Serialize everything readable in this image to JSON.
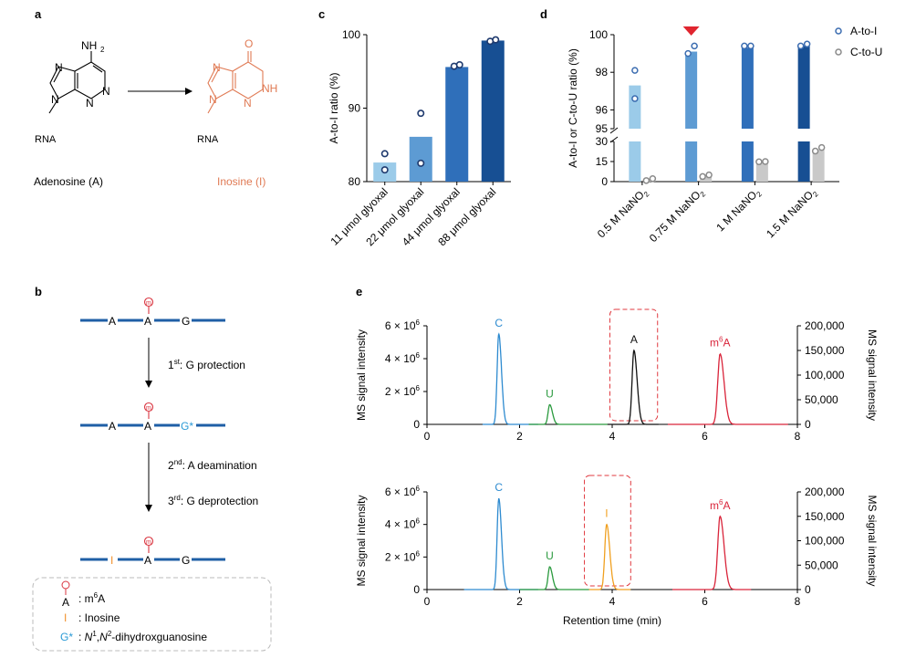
{
  "panel_labels": {
    "a": "a",
    "b": "b",
    "c": "c",
    "d": "d",
    "e": "e"
  },
  "panel_a": {
    "nh2": "NH",
    "nh2_sub": "2",
    "n_left": "N",
    "n_right": "N",
    "n_top": "N",
    "n_bottom": "N",
    "n9": "N",
    "rna_left": "RNA",
    "o": "O",
    "nh": "NH",
    "i_n_left": "N",
    "i_n_top": "N",
    "i_n_bottom": "N",
    "i_n9": "N",
    "rna_right": "RNA",
    "adenosine_label": "Adenosine (A)",
    "inosine_label": "Inosine (I)",
    "colors": {
      "inosine": "#e07a54"
    }
  },
  "panel_b": {
    "seq1": {
      "a1": "A",
      "a2": "A",
      "g": "G",
      "m": "m"
    },
    "step1_sup": "st",
    "step1_num": "1",
    "step1_text": ": G protection",
    "seq2": {
      "a1": "A",
      "a2": "A",
      "gstar": "G*",
      "m": "m"
    },
    "step2_num": "2",
    "step2_sup": "nd",
    "step2_text": ": A deamination",
    "step3_num": "3",
    "step3_sup": "rd",
    "step3_text": ": G deprotection",
    "seq3": {
      "i": "I",
      "a": "A",
      "g": "G",
      "m": "m"
    },
    "legend": {
      "m6a_letter": "A",
      "m6a_text": ": m",
      "m6a_sup": "6",
      "m6a_end": "A",
      "inosine_letter": "I",
      "inosine_text": ": Inosine",
      "g_letter": "G*",
      "g_text_n1": "N",
      "g_sup1": "1",
      "g_mid": ",",
      "g_text_n2": "N",
      "g_sup2": "2",
      "g_end": "-dihydroxguanosine",
      "g_prefix": ": "
    },
    "colors": {
      "strand": "#1f5fa6",
      "m6a": "#d9343f",
      "inosine": "#f0922c",
      "gstar": "#2a9ad6"
    }
  },
  "chart_data": [
    {
      "panel": "c",
      "type": "bar",
      "categories": [
        "11 μmol glyoxal",
        "22 μmol glyoxal",
        "44 μmol glyoxal",
        "88 μmol glyoxal"
      ],
      "values": [
        82.6,
        86.1,
        95.6,
        99.2
      ],
      "points": [
        [
          83.8,
          81.6
        ],
        [
          89.3,
          82.5
        ],
        [
          95.7,
          95.9
        ],
        [
          99.1,
          99.3
        ]
      ],
      "ylabel": "A-to-I ratio (%)",
      "ylim": [
        80,
        100
      ],
      "yticks": [
        80,
        90,
        100
      ],
      "bar_colors": [
        "#9bcbe9",
        "#5d9bd3",
        "#2f6fba",
        "#174f93"
      ],
      "point_color": "#1f3a6e"
    },
    {
      "panel": "d",
      "type": "bar",
      "categories": [
        "0.5 M NaNO",
        "0.75 M NaNO",
        "1 M NaNO",
        "1.5 M NaNO"
      ],
      "category_subscript": "2",
      "ylabel": "A-to-I or C-to-U ratio (%)",
      "broken_axis": {
        "upper": [
          95,
          100
        ],
        "lower": [
          0,
          30
        ]
      },
      "yticks_upper": [
        95,
        96,
        98,
        100
      ],
      "yticks_lower": [
        0,
        15,
        30
      ],
      "series": [
        {
          "name": "A-to-I",
          "values": [
            97.3,
            99.1,
            99.3,
            99.4
          ],
          "points": [
            [
              98.1,
              96.6
            ],
            [
              99.0,
              99.4
            ],
            [
              99.4,
              99.4
            ],
            [
              99.4,
              99.5
            ]
          ]
        },
        {
          "name": "C-to-U",
          "values": [
            1.5,
            4.3,
            14.6,
            24.0
          ],
          "points": [
            [
              0.8,
              2.2
            ],
            [
              3.8,
              5.0
            ],
            [
              14.8,
              15.0
            ],
            [
              22.8,
              25.5
            ]
          ]
        }
      ],
      "bar_colors_ai": [
        "#9bcbe9",
        "#5d9bd3",
        "#2f6fba",
        "#174f93"
      ],
      "bar_color_cu": "#c9c9c9",
      "point_colors": {
        "A-to-I": "#3b6cb0",
        "C-to-U": "#8a8a8a"
      },
      "highlight_marker_index": 1,
      "highlight_color": "#e0252f"
    },
    {
      "panel": "e-top",
      "type": "line",
      "xlabel": "",
      "ylabel_left": "MS signal intensity",
      "ylabel_right": "MS signal intensity",
      "xlim": [
        0,
        8
      ],
      "xticks": [
        0,
        2,
        4,
        6,
        8
      ],
      "ylim_left": [
        0,
        6000000
      ],
      "yticks_left": [
        {
          "v": 0,
          "t": "0"
        },
        {
          "v": 2000000,
          "t": "2 × 10",
          "e": "6"
        },
        {
          "v": 4000000,
          "t": "4 × 10",
          "e": "6"
        },
        {
          "v": 6000000,
          "t": "6 × 10",
          "e": "6"
        }
      ],
      "ylim_right": [
        0,
        200000
      ],
      "yticks_right": [
        {
          "v": 0,
          "t": "0"
        },
        {
          "v": 50000,
          "t": "50,000"
        },
        {
          "v": 100000,
          "t": "100,000"
        },
        {
          "v": 150000,
          "t": "150,000"
        },
        {
          "v": 200000,
          "t": "200,000"
        }
      ],
      "series": [
        {
          "name": "C",
          "label": "C",
          "color": "#2e8bd0",
          "center": 1.55,
          "height": 5500000,
          "width": 0.035,
          "range": [
            1.2,
            2.4
          ]
        },
        {
          "name": "U",
          "label": "U",
          "color": "#2a9a3e",
          "center": 2.65,
          "height": 1200000,
          "width": 0.035,
          "range": [
            2.2,
            3.9
          ]
        },
        {
          "name": "A",
          "label": "A",
          "color": "#111111",
          "center": 4.47,
          "height": 4500000,
          "width": 0.04,
          "range": [
            3.9,
            5.0
          ]
        },
        {
          "name": "m6A",
          "label": "m",
          "label_sup": "6",
          "label_end": "A",
          "color": "#d9243a",
          "center": 6.33,
          "height": 4300000,
          "width": 0.05,
          "range": [
            5.2,
            7.8
          ]
        }
      ],
      "highlight_box": {
        "x": [
          3.95,
          4.98
        ],
        "color": "#e0393f"
      }
    },
    {
      "panel": "e-bottom",
      "type": "line",
      "xlabel": "Retention time (min)",
      "ylabel_left": "MS signal intensity",
      "ylabel_right": "MS signal intensity",
      "xlim": [
        0,
        8
      ],
      "xticks": [
        0,
        2,
        4,
        6,
        8
      ],
      "ylim_left": [
        0,
        6000000
      ],
      "yticks_left": [
        {
          "v": 0,
          "t": "0"
        },
        {
          "v": 2000000,
          "t": "2 × 10",
          "e": "6"
        },
        {
          "v": 4000000,
          "t": "4 × 10",
          "e": "6"
        },
        {
          "v": 6000000,
          "t": "6 × 10",
          "e": "6"
        }
      ],
      "ylim_right": [
        0,
        200000
      ],
      "yticks_right": [
        {
          "v": 0,
          "t": "0"
        },
        {
          "v": 50000,
          "t": "50,000"
        },
        {
          "v": 100000,
          "t": "100,000"
        },
        {
          "v": 150000,
          "t": "150,000"
        },
        {
          "v": 200000,
          "t": "200,000"
        }
      ],
      "series": [
        {
          "name": "C",
          "label": "C",
          "color": "#2e8bd0",
          "center": 1.55,
          "height": 5600000,
          "width": 0.035,
          "range": [
            0.8,
            2.4
          ]
        },
        {
          "name": "U",
          "label": "U",
          "color": "#2a9a3e",
          "center": 2.65,
          "height": 1400000,
          "width": 0.035,
          "range": [
            2.0,
            3.5
          ]
        },
        {
          "name": "I",
          "label": "I",
          "color": "#f0a020",
          "center": 3.88,
          "height": 4000000,
          "width": 0.04,
          "range": [
            3.5,
            4.4
          ]
        },
        {
          "name": "m6A",
          "label": "m",
          "label_sup": "6",
          "label_end": "A",
          "color": "#d9243a",
          "center": 6.33,
          "height": 4500000,
          "width": 0.05,
          "range": [
            5.3,
            7.0
          ]
        }
      ],
      "highlight_box": {
        "x": [
          3.4,
          4.4
        ],
        "color": "#e0393f"
      }
    }
  ]
}
